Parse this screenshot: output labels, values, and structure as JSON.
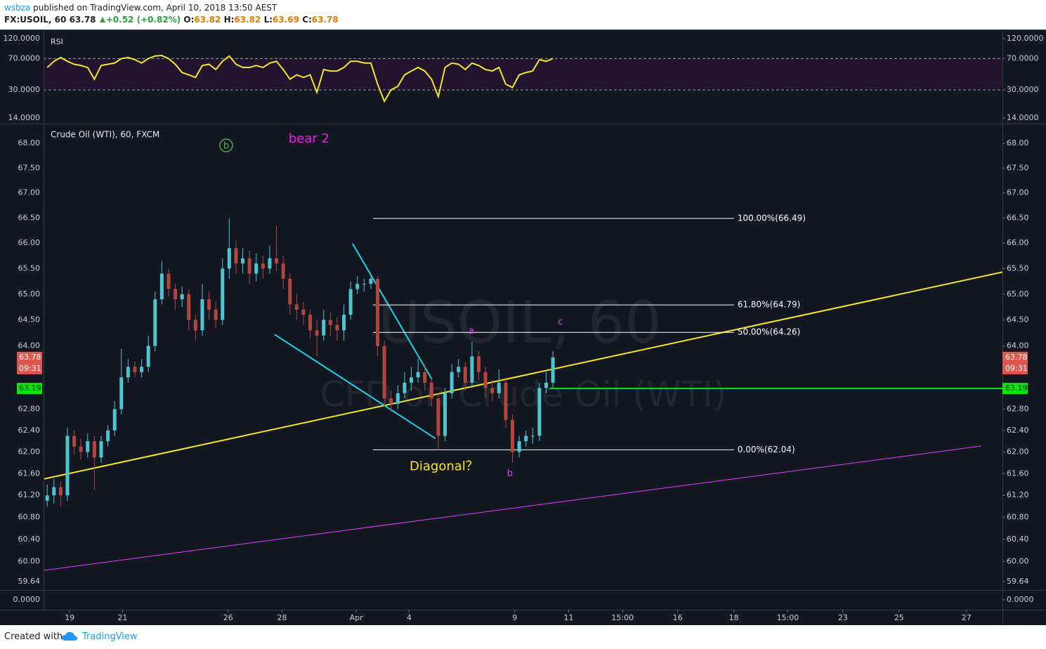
{
  "header": {
    "user": "wsbza",
    "published": "published on TradingView.com, April 10, 2018 13:50 AEST",
    "symbol": "FX:USOIL, 60",
    "last": 63.78,
    "change": "+0.52 (+0.82%)",
    "ohlc": [
      {
        "key": "O:",
        "value": 63.82
      },
      {
        "key": "H:",
        "value": 63.82
      },
      {
        "key": "L:",
        "value": 63.69
      },
      {
        "key": "C:",
        "value": 63.78
      }
    ]
  },
  "footer": {
    "created": "Created with",
    "brand": "TradingView"
  },
  "chart_data": [
    {
      "type": "candlestick",
      "title": "Crude Oil (WTI), 60, FXCM",
      "watermark": [
        "USOIL, 60",
        "CFD on Crude Oil (WTI)"
      ],
      "log_scale": true,
      "ylim": [
        59.49,
        68.39
      ],
      "yticks": [
        {
          "value": 68,
          "label": "68.00"
        },
        {
          "value": 67.5,
          "label": "67.50"
        },
        {
          "value": 67,
          "label": "67.00"
        },
        {
          "value": 66.5,
          "label": "66.50"
        },
        {
          "value": 66,
          "label": "66.00"
        },
        {
          "value": 65.5,
          "label": "65.50"
        },
        {
          "value": 65,
          "label": "65.00"
        },
        {
          "value": 64.5,
          "label": "64.50"
        },
        {
          "value": 64,
          "label": "64.00"
        },
        {
          "value": 62.8,
          "label": "62.80"
        },
        {
          "value": 62.4,
          "label": "62.40"
        },
        {
          "value": 62,
          "label": "62.00"
        },
        {
          "value": 61.6,
          "label": "61.60"
        },
        {
          "value": 61.2,
          "label": "61.20"
        },
        {
          "value": 60.8,
          "label": "60.80"
        },
        {
          "value": 60.4,
          "label": "60.40"
        },
        {
          "value": 60,
          "label": "60.00"
        },
        59.64
      ],
      "xlim": [
        -40,
        852
      ],
      "xticks": [
        {
          "value": 22,
          "label": "19"
        },
        {
          "value": 69,
          "label": "21"
        },
        {
          "value": 163,
          "label": "26"
        },
        {
          "value": 211,
          "label": "28"
        },
        {
          "value": 277,
          "label": "Apr"
        },
        {
          "value": 324,
          "label": "4"
        },
        {
          "value": 418,
          "label": "9"
        },
        {
          "value": 466,
          "label": "11"
        },
        {
          "value": 514,
          "label": "15:00"
        },
        {
          "value": 563,
          "label": "16"
        },
        {
          "value": 613,
          "label": "18"
        },
        {
          "value": 661,
          "label": "15:00"
        },
        {
          "value": 710,
          "label": "23"
        },
        {
          "value": 760,
          "label": "25"
        },
        {
          "value": 820,
          "label": "27"
        }
      ],
      "x": [
        2,
        8,
        14,
        20,
        26,
        32,
        38,
        44,
        50,
        56,
        62,
        68,
        74,
        80,
        86,
        92,
        98,
        104,
        110,
        116,
        122,
        128,
        134,
        140,
        146,
        152,
        158,
        164,
        170,
        176,
        182,
        188,
        194,
        200,
        206,
        212,
        218,
        224,
        230,
        236,
        242,
        248,
        254,
        260,
        266,
        272,
        278,
        284,
        290,
        296,
        302,
        308,
        314,
        320,
        326,
        332,
        338,
        344,
        350,
        356,
        362,
        368,
        374,
        380,
        386,
        392,
        398,
        404,
        410,
        416,
        422,
        428,
        434,
        440,
        446,
        452
      ],
      "open": [
        61.1,
        61.2,
        61.35,
        61.2,
        62.3,
        62.1,
        62.0,
        62.2,
        61.9,
        62.2,
        62.4,
        62.8,
        63.4,
        63.6,
        63.5,
        63.6,
        64.0,
        64.9,
        65.4,
        65.1,
        64.9,
        65.0,
        64.5,
        64.3,
        64.9,
        64.7,
        64.5,
        65.5,
        65.9,
        65.6,
        65.7,
        65.4,
        65.6,
        65.5,
        65.7,
        65.6,
        65.3,
        64.8,
        64.7,
        64.6,
        64.3,
        64.2,
        64.5,
        64.4,
        64.3,
        64.6,
        65.1,
        65.2,
        65.2,
        65.3,
        64.0,
        63.0,
        62.9,
        63.1,
        63.3,
        63.4,
        63.5,
        63.3,
        63.0,
        62.3,
        63.1,
        63.5,
        63.6,
        63.3,
        63.8,
        63.5,
        63.2,
        63.1,
        63.3,
        62.6,
        62.0,
        62.2,
        62.3,
        62.3,
        63.2,
        63.3
      ],
      "high": [
        61.4,
        61.5,
        61.45,
        62.45,
        62.4,
        62.25,
        62.35,
        62.3,
        62.3,
        62.5,
        62.95,
        63.95,
        63.75,
        63.7,
        63.75,
        64.2,
        65.05,
        65.65,
        65.5,
        65.2,
        65.15,
        65.1,
        64.6,
        65.2,
        65.05,
        64.85,
        65.7,
        66.49,
        66.05,
        65.9,
        65.85,
        65.8,
        65.75,
        65.95,
        66.35,
        65.75,
        65.4,
        65.0,
        64.85,
        64.7,
        64.5,
        64.7,
        64.65,
        64.55,
        64.8,
        65.25,
        65.35,
        65.3,
        65.4,
        65.35,
        64.1,
        63.15,
        63.25,
        63.5,
        63.6,
        63.75,
        63.65,
        63.4,
        63.1,
        63.2,
        63.65,
        63.75,
        63.7,
        64.08,
        63.9,
        63.6,
        63.35,
        63.55,
        63.4,
        62.7,
        62.3,
        62.4,
        62.45,
        63.3,
        63.5,
        63.9
      ],
      "low": [
        61.0,
        61.05,
        61.0,
        61.1,
        61.95,
        61.85,
        61.9,
        61.3,
        61.8,
        62.1,
        62.3,
        62.7,
        63.3,
        63.4,
        63.4,
        63.5,
        63.9,
        64.8,
        64.95,
        64.7,
        64.75,
        64.3,
        64.1,
        64.2,
        64.5,
        64.35,
        64.4,
        65.3,
        65.4,
        65.4,
        65.2,
        65.25,
        65.3,
        65.4,
        65.45,
        65.1,
        64.6,
        64.5,
        64.4,
        64.15,
        63.8,
        64.1,
        64.2,
        64.1,
        64.1,
        64.5,
        65.0,
        65.05,
        65.1,
        63.8,
        62.85,
        62.75,
        62.8,
        63.0,
        63.15,
        63.3,
        63.15,
        62.85,
        62.04,
        62.2,
        63.0,
        63.4,
        63.15,
        63.2,
        63.35,
        63.0,
        62.95,
        63.0,
        62.45,
        61.8,
        61.9,
        62.1,
        62.15,
        62.2,
        63.1,
        63.2
      ],
      "close": [
        61.2,
        61.35,
        61.2,
        62.3,
        62.1,
        62.0,
        62.2,
        61.9,
        62.2,
        62.4,
        62.8,
        63.4,
        63.6,
        63.5,
        63.6,
        64.0,
        64.9,
        65.4,
        65.1,
        64.9,
        65.0,
        64.5,
        64.3,
        64.9,
        64.7,
        64.5,
        65.5,
        65.9,
        65.6,
        65.7,
        65.4,
        65.6,
        65.5,
        65.7,
        65.6,
        65.3,
        64.8,
        64.7,
        64.6,
        64.3,
        64.2,
        64.5,
        64.4,
        64.3,
        64.6,
        65.1,
        65.2,
        65.2,
        65.3,
        64.0,
        63.0,
        62.9,
        63.1,
        63.3,
        63.4,
        63.5,
        63.3,
        63.0,
        62.3,
        63.1,
        63.5,
        63.6,
        63.3,
        63.8,
        63.5,
        63.2,
        63.1,
        63.3,
        62.6,
        62.0,
        62.2,
        62.3,
        62.3,
        63.2,
        63.3,
        63.78
      ],
      "up_color": "#4fc3d0",
      "down_color": "#b0463c",
      "last_price": 63.78,
      "countdown": "09:31",
      "last_color": "#e0574f",
      "hline": {
        "value": 63.19,
        "x_start": 448.75,
        "color": "#00e600"
      },
      "trendlines": [
        {
          "color": "#f5e52b",
          "width": 2,
          "x": [
            -1.25,
            851.9
          ],
          "y": [
            61.5,
            65.43
          ]
        },
        {
          "color": "#e040fb",
          "width": 1,
          "x": [
            -1.25,
            833.1
          ],
          "y": [
            59.84,
            62.11
          ]
        },
        {
          "color": "#19d3e6",
          "width": 2,
          "x": [
            273.75,
            344.4
          ],
          "y": [
            65.99,
            63.36
          ]
        },
        {
          "color": "#19d3e6",
          "width": 2,
          "x": [
            204.4,
            347.5
          ],
          "y": [
            64.22,
            62.25
          ]
        }
      ],
      "fib": {
        "color": "#ffffff",
        "x": [
          291.9,
          613.1
        ],
        "levels": [
          {
            "value": 66.49,
            "label": "100.00%(66.49)"
          },
          {
            "value": 64.79,
            "label": "61.80%(64.79)"
          },
          {
            "value": 64.26,
            "label": "50.00%(64.26)"
          },
          {
            "value": 62.04,
            "label": "0.00%(62.04)"
          }
        ]
      },
      "annotations": [
        {
          "text": "b",
          "x": 161.25,
          "y": 67.96,
          "color": "#4caf50",
          "circled": true
        },
        {
          "text": "bear 2",
          "x": 235,
          "y": 68.1,
          "color": "#e91ee9"
        },
        {
          "text": "a",
          "x": 379.4,
          "y": 64.3,
          "color": "#e040fb"
        },
        {
          "text": "c",
          "x": 458.75,
          "y": 64.47,
          "color": "#e040fb"
        },
        {
          "text": "b",
          "x": 413.75,
          "y": 61.61,
          "color": "#e040fb"
        },
        {
          "text": "Diagonal？",
          "x": 355,
          "y": 61.74,
          "color": "#f5e52b"
        }
      ]
    },
    {
      "type": "line",
      "title": "RSI",
      "log_scale": true,
      "ylim": [
        12.26,
        148
      ],
      "yticks": [
        {
          "value": 120,
          "label": "120.0000"
        },
        {
          "value": 70,
          "label": "70.0000"
        },
        {
          "value": 30,
          "label": "30.0000"
        },
        {
          "value": 14,
          "label": "14.0000"
        }
      ],
      "band": [
        30,
        70
      ],
      "band_color": "#22132f",
      "color": "#f5e52b",
      "x": [
        2,
        8,
        14,
        20,
        26,
        32,
        38,
        44,
        50,
        56,
        62,
        68,
        74,
        80,
        86,
        92,
        98,
        104,
        110,
        116,
        122,
        128,
        134,
        140,
        146,
        152,
        158,
        164,
        170,
        176,
        182,
        188,
        194,
        200,
        206,
        212,
        218,
        224,
        230,
        236,
        242,
        248,
        254,
        260,
        266,
        272,
        278,
        284,
        290,
        296,
        302,
        308,
        314,
        320,
        326,
        332,
        338,
        344,
        350,
        356,
        362,
        368,
        374,
        380,
        386,
        392,
        398,
        404,
        410,
        416,
        422,
        428,
        434,
        440,
        446,
        452
      ],
      "values": [
        55,
        65,
        72,
        65,
        60,
        58,
        55,
        40,
        58,
        60,
        62,
        70,
        72,
        68,
        62,
        70,
        75,
        76,
        70,
        60,
        48,
        45,
        42,
        58,
        60,
        52,
        65,
        75,
        60,
        55,
        55,
        58,
        55,
        62,
        65,
        52,
        40,
        45,
        42,
        45,
        28,
        52,
        50,
        50,
        55,
        65,
        65,
        62,
        62,
        35,
        22,
        30,
        33,
        45,
        50,
        55,
        50,
        40,
        25,
        55,
        62,
        60,
        52,
        62,
        58,
        52,
        50,
        55,
        35,
        32,
        45,
        48,
        50,
        68,
        65,
        70
      ]
    },
    {
      "type": "pane",
      "yticks": [
        {
          "value": 0,
          "label": "0.0000"
        }
      ]
    }
  ]
}
